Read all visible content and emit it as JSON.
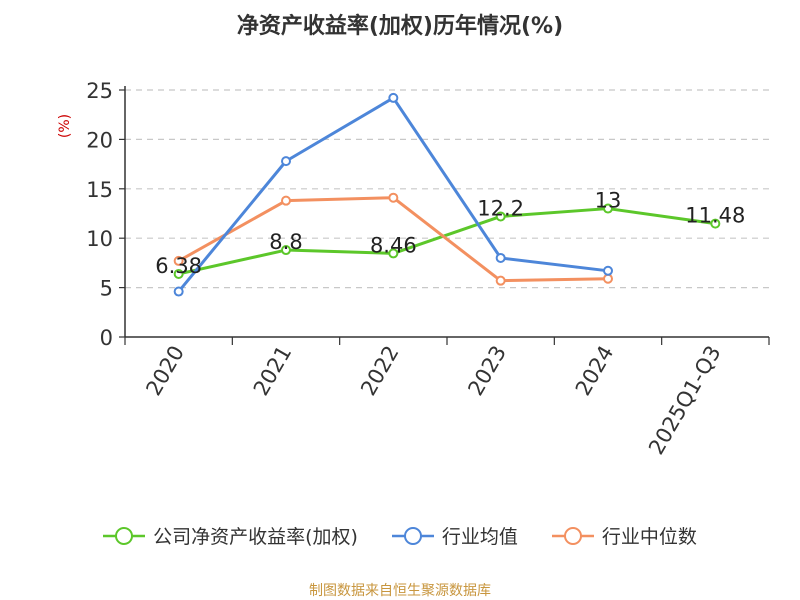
{
  "title": "净资产收益率(加权)历年情况(%)",
  "source": "制图数据来自恒生聚源数据库",
  "colors": {
    "company": "#5cc72a",
    "industry_avg": "#4d86d9",
    "industry_median": "#f39060",
    "grid": "#c8c8c8",
    "axis": "#333333",
    "ylabel": "#cc0000"
  },
  "chart_data": {
    "type": "line",
    "title": "净资产收益率(加权)历年情况(%)",
    "xlabel": "",
    "ylabel": "(%)",
    "ylim": [
      0,
      25
    ],
    "yticks": [
      0,
      5,
      10,
      15,
      20,
      25
    ],
    "categories": [
      "2020",
      "2021",
      "2022",
      "2023",
      "2024",
      "2025Q1-Q3"
    ],
    "grid": true,
    "legend_position": "bottom",
    "series": [
      {
        "name": "公司净资产收益率(加权)",
        "color": "#5cc72a",
        "values": [
          6.38,
          8.8,
          8.46,
          12.2,
          13,
          11.48
        ],
        "labels": [
          "6.38",
          "8.8",
          "8.46",
          "12.2",
          "13",
          "11.48"
        ]
      },
      {
        "name": "行业均值",
        "color": "#4d86d9",
        "values": [
          4.6,
          17.8,
          24.2,
          8.0,
          6.7,
          null
        ]
      },
      {
        "name": "行业中位数",
        "color": "#f39060",
        "values": [
          7.7,
          13.8,
          14.1,
          5.7,
          5.9,
          null
        ]
      }
    ]
  }
}
